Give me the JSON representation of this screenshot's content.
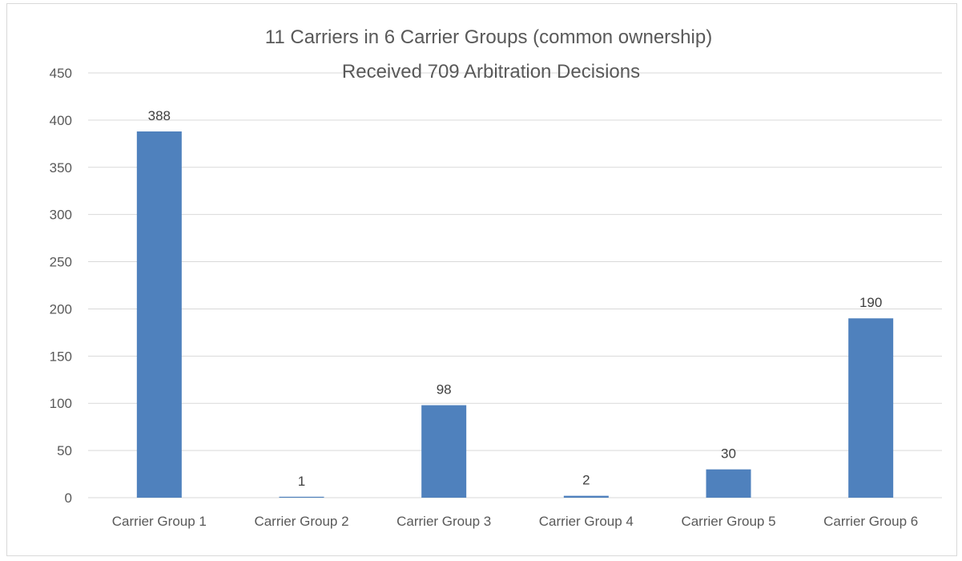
{
  "chart_data": {
    "type": "bar",
    "title_lines": [
      "11 Carriers in 6 Carrier Groups (common ownership)",
      "Received 709 Arbitration Decisions"
    ],
    "categories": [
      "Carrier Group 1",
      "Carrier Group 2",
      "Carrier Group  3",
      "Carrier Group 4",
      "Carrier Group 5",
      "Carrier Group 6"
    ],
    "values": [
      388,
      1,
      98,
      2,
      30,
      190
    ],
    "data_labels": [
      "388",
      "1",
      "98",
      "2",
      "30",
      "190"
    ],
    "y_ticks": [
      "0",
      "50",
      "100",
      "150",
      "200",
      "250",
      "300",
      "350",
      "400",
      "450"
    ],
    "ylim": [
      0,
      450
    ],
    "xlabel": "",
    "ylabel": "",
    "grid": true,
    "legend": "none",
    "colors": {
      "bar": "#4f81bd",
      "grid": "#d9d9d9",
      "text": "#595959"
    }
  }
}
